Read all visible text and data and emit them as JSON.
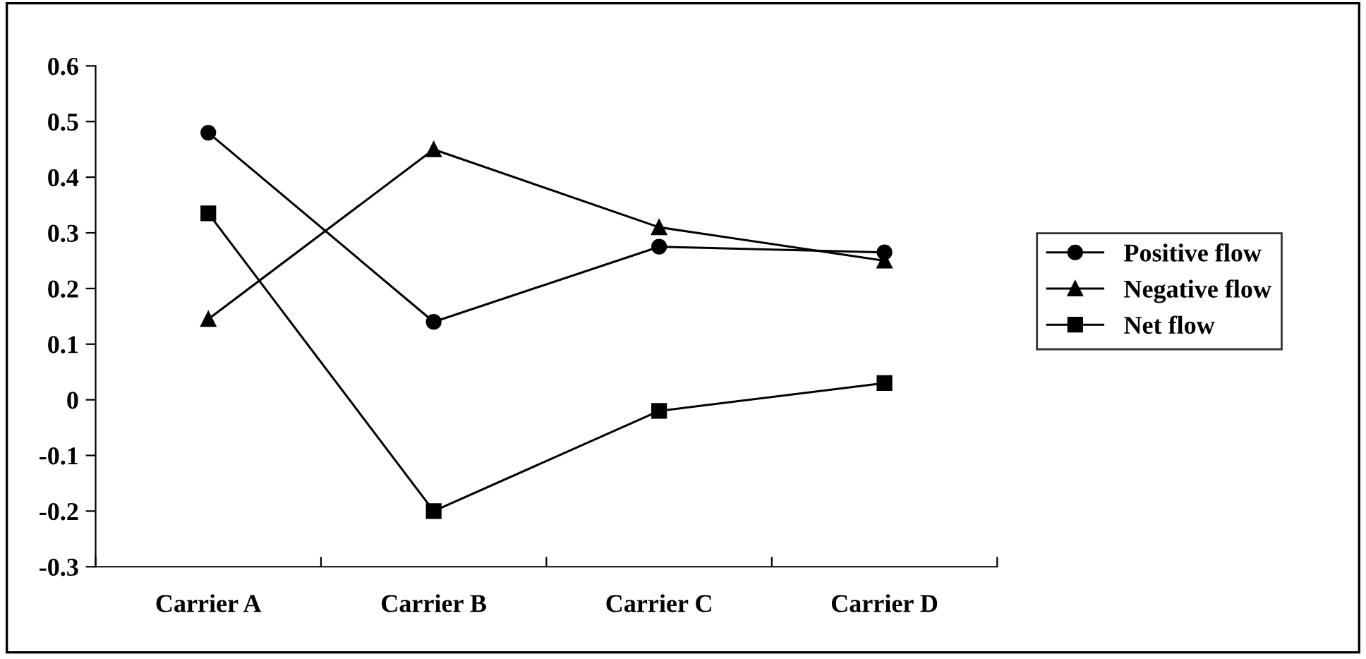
{
  "chart_data": {
    "type": "line",
    "categories": [
      "Carrier A",
      "Carrier B",
      "Carrier C",
      "Carrier D"
    ],
    "series": [
      {
        "name": "Positive flow",
        "color": "#000000",
        "marker": "circle",
        "values": [
          0.48,
          0.14,
          0.275,
          0.265
        ]
      },
      {
        "name": "Negative flow",
        "color": "#000000",
        "marker": "triangle",
        "values": [
          0.145,
          0.45,
          0.31,
          0.25
        ]
      },
      {
        "name": "Net flow",
        "color": "#000000",
        "marker": "square",
        "values": [
          0.335,
          -0.2,
          -0.02,
          0.03
        ]
      }
    ],
    "ylim": [
      -0.3,
      0.6
    ],
    "yticks": [
      {
        "value": -0.3,
        "label": "-0.3"
      },
      {
        "value": -0.2,
        "label": "-0.2"
      },
      {
        "value": -0.1,
        "label": "-0.1"
      },
      0,
      0.1,
      0.2,
      0.3,
      0.4,
      0.5,
      0.6
    ],
    "grid": false,
    "legend": "right",
    "line_style": "solid"
  }
}
